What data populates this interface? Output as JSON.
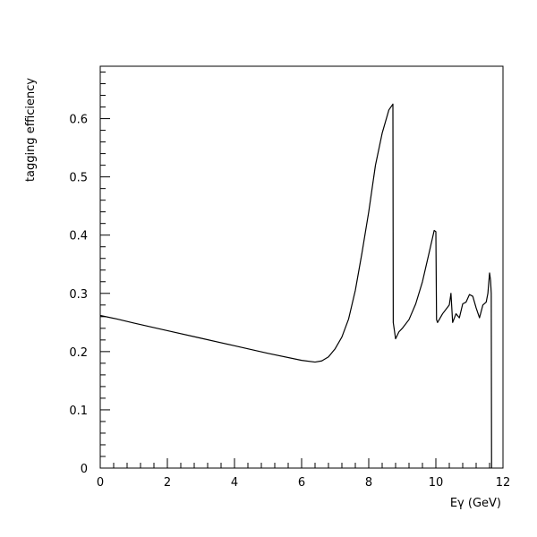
{
  "chart_data": {
    "type": "line",
    "title": "",
    "xlabel": "Eγ (GeV)",
    "ylabel": "tagging efficiency",
    "xlim": [
      0,
      12
    ],
    "ylim": [
      0,
      0.69
    ],
    "grid": false,
    "x_ticks": [
      0,
      2,
      4,
      6,
      8,
      10,
      12
    ],
    "y_ticks": [
      0,
      0.1,
      0.2,
      0.3,
      0.4,
      0.5,
      0.6
    ],
    "x_tick_labels": [
      "0",
      "2",
      "4",
      "6",
      "8",
      "10",
      "12"
    ],
    "y_tick_labels": [
      "0",
      "0.1",
      "0.2",
      "0.3",
      "0.4",
      "0.5",
      "0.6"
    ],
    "series": [
      {
        "color": "#000000",
        "x": [
          0.0,
          0.5,
          1.0,
          2.0,
          3.0,
          4.0,
          5.0,
          6.0,
          6.4,
          6.6,
          6.8,
          7.0,
          7.2,
          7.4,
          7.6,
          7.8,
          8.0,
          8.2,
          8.4,
          8.6,
          8.72,
          8.73,
          8.8,
          8.9,
          9.0,
          9.2,
          9.4,
          9.6,
          9.8,
          9.95,
          10.0,
          10.02,
          10.05,
          10.2,
          10.4,
          10.45,
          10.5,
          10.6,
          10.7,
          10.8,
          10.9,
          11.0,
          11.1,
          11.2,
          11.3,
          11.4,
          11.5,
          11.55,
          11.6,
          11.63,
          11.65,
          11.66
        ],
        "y": [
          0.262,
          0.256,
          0.249,
          0.236,
          0.223,
          0.21,
          0.197,
          0.185,
          0.182,
          0.184,
          0.191,
          0.205,
          0.225,
          0.256,
          0.305,
          0.37,
          0.44,
          0.52,
          0.575,
          0.615,
          0.625,
          0.25,
          0.222,
          0.234,
          0.24,
          0.255,
          0.282,
          0.32,
          0.37,
          0.408,
          0.406,
          0.255,
          0.25,
          0.265,
          0.28,
          0.3,
          0.25,
          0.265,
          0.258,
          0.282,
          0.285,
          0.298,
          0.295,
          0.275,
          0.258,
          0.28,
          0.285,
          0.3,
          0.335,
          0.322,
          0.3,
          0.0
        ]
      }
    ]
  }
}
